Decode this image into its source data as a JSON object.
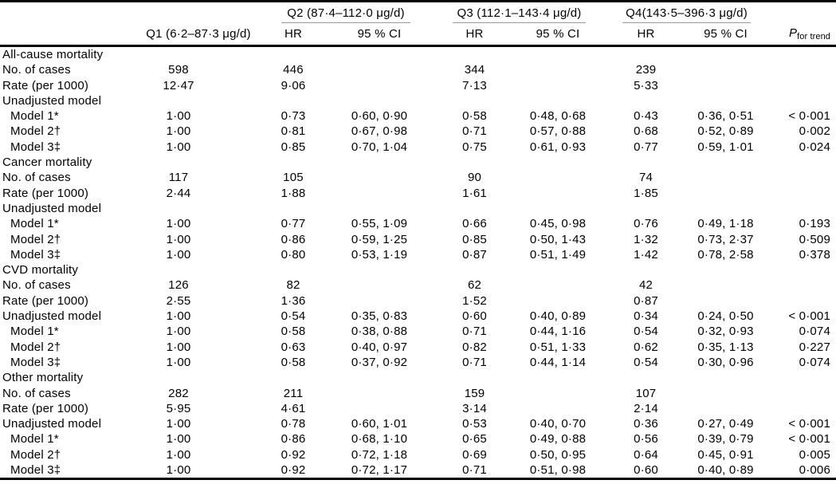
{
  "table": {
    "header": {
      "groups": [
        "Q2 (87·4–112·0 μg/d)",
        "Q3 (112·1–143·4 μg/d)",
        "Q4(143·5–396·3 μg/d)"
      ],
      "q1": "Q1 (6·2–87·3 μg/d)",
      "hr": "HR",
      "ci": "95 % CI",
      "p_main": "P",
      "p_sub": "for trend"
    },
    "sections": [
      {
        "title": "All-cause mortality",
        "rows": [
          {
            "label": "No. of cases",
            "indent": false,
            "cells": [
              "598",
              "446",
              "",
              "344",
              "",
              "239",
              "",
              ""
            ]
          },
          {
            "label": "Rate (per 1000)",
            "indent": false,
            "cells": [
              "12·47",
              "9·06",
              "",
              "7·13",
              "",
              "5·33",
              "",
              ""
            ]
          },
          {
            "label": "Unadjusted model",
            "indent": false,
            "cells": [
              "",
              "",
              "",
              "",
              "",
              "",
              "",
              ""
            ]
          },
          {
            "label": "Model 1*",
            "indent": true,
            "cells": [
              "1·00",
              "0·73",
              "0·60, 0·90",
              "0·58",
              "0·48, 0·68",
              "0·43",
              "0·36, 0·51",
              "< 0·001"
            ]
          },
          {
            "label": "Model 2†",
            "indent": true,
            "cells": [
              "1·00",
              "0·81",
              "0·67, 0·98",
              "0·71",
              "0·57, 0·88",
              "0·68",
              "0·52, 0·89",
              "0·002"
            ]
          },
          {
            "label": "Model 3‡",
            "indent": true,
            "cells": [
              "1·00",
              "0·85",
              "0·70, 1·04",
              "0·75",
              "0·61, 0·93",
              "0·77",
              "0·59, 1·01",
              "0·024"
            ]
          }
        ]
      },
      {
        "title": "Cancer mortality",
        "rows": [
          {
            "label": "No. of cases",
            "indent": false,
            "cells": [
              "117",
              "105",
              "",
              "90",
              "",
              "74",
              "",
              ""
            ]
          },
          {
            "label": "Rate (per 1000)",
            "indent": false,
            "cells": [
              "2·44",
              "1·88",
              "",
              "1·61",
              "",
              "1·85",
              "",
              ""
            ]
          },
          {
            "label": "Unadjusted model",
            "indent": false,
            "cells": [
              "",
              "",
              "",
              "",
              "",
              "",
              "",
              ""
            ]
          },
          {
            "label": "Model 1*",
            "indent": true,
            "cells": [
              "1·00",
              "0·77",
              "0·55, 1·09",
              "0·66",
              "0·45, 0·98",
              "0·76",
              "0·49, 1·18",
              "0·193"
            ]
          },
          {
            "label": "Model 2†",
            "indent": true,
            "cells": [
              "1·00",
              "0·86",
              "0·59, 1·25",
              "0·85",
              "0·50, 1·43",
              "1·32",
              "0·73, 2·37",
              "0·509"
            ]
          },
          {
            "label": "Model 3‡",
            "indent": true,
            "cells": [
              "1·00",
              "0·80",
              "0·53, 1·19",
              "0·87",
              "0·51, 1·49",
              "1·42",
              "0·78, 2·58",
              "0·378"
            ]
          }
        ]
      },
      {
        "title": "CVD mortality",
        "rows": [
          {
            "label": "No. of cases",
            "indent": false,
            "cells": [
              "126",
              "82",
              "",
              "62",
              "",
              "42",
              "",
              ""
            ]
          },
          {
            "label": "Rate (per 1000)",
            "indent": false,
            "cells": [
              "2·55",
              "1·36",
              "",
              "1·52",
              "",
              "0·87",
              "",
              ""
            ]
          },
          {
            "label": "Unadjusted model",
            "indent": false,
            "cells": [
              "1·00",
              "0·54",
              "0·35, 0·83",
              "0·60",
              "0·40, 0·89",
              "0·34",
              "0·24, 0·50",
              "< 0·001"
            ]
          },
          {
            "label": "Model 1*",
            "indent": true,
            "cells": [
              "1·00",
              "0·58",
              "0·38, 0·88",
              "0·71",
              "0·44, 1·16",
              "0·54",
              "0·32, 0·93",
              "0·074"
            ]
          },
          {
            "label": "Model 2†",
            "indent": true,
            "cells": [
              "1·00",
              "0·63",
              "0·40, 0·97",
              "0·82",
              "0·51, 1·33",
              "0·62",
              "0·35, 1·13",
              "0·227"
            ]
          },
          {
            "label": "Model 3‡",
            "indent": true,
            "cells": [
              "1·00",
              "0·58",
              "0·37, 0·92",
              "0·71",
              "0·44, 1·14",
              "0·54",
              "0·30, 0·96",
              "0·074"
            ]
          }
        ]
      },
      {
        "title": "Other mortality",
        "rows": [
          {
            "label": "No. of cases",
            "indent": false,
            "cells": [
              "282",
              "211",
              "",
              "159",
              "",
              "107",
              "",
              ""
            ]
          },
          {
            "label": "Rate (per 1000)",
            "indent": false,
            "cells": [
              "5·95",
              "4·61",
              "",
              "3·14",
              "",
              "2·14",
              "",
              ""
            ]
          },
          {
            "label": "Unadjusted model",
            "indent": false,
            "cells": [
              "1·00",
              "0·78",
              "0·60, 1·01",
              "0·53",
              "0·40, 0·70",
              "0·36",
              "0·27, 0·49",
              "< 0·001"
            ]
          },
          {
            "label": "Model 1*",
            "indent": true,
            "cells": [
              "1·00",
              "0·86",
              "0·68, 1·10",
              "0·65",
              "0·49, 0·88",
              "0·56",
              "0·39, 0·79",
              "< 0·001"
            ]
          },
          {
            "label": "Model 2†",
            "indent": true,
            "cells": [
              "1·00",
              "0·92",
              "0·72, 1·18",
              "0·69",
              "0·50, 0·95",
              "0·64",
              "0·45, 0·91",
              "0·005"
            ]
          },
          {
            "label": "Model 3‡",
            "indent": true,
            "cells": [
              "1·00",
              "0·92",
              "0·72, 1·17",
              "0·71",
              "0·51, 0·98",
              "0·60",
              "0·40, 0·89",
              "0·006"
            ]
          }
        ]
      }
    ]
  }
}
